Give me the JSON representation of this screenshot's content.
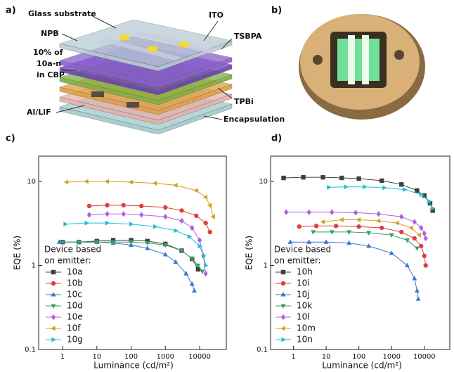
{
  "panel_labels": [
    "a)",
    "b)",
    "c)",
    "d)"
  ],
  "diagram": {
    "labels": [
      "Glass substrate",
      "ITO",
      "NPB",
      "TSBPA",
      "10% of",
      "10a-n",
      "in CBP",
      "Al/LiF",
      "TPBi",
      "Encapsulation"
    ]
  },
  "chart_data": [
    {
      "type": "line",
      "x_label": "Luminance (cd/m²)",
      "y_label": "EQE (%)",
      "log_x": true,
      "log_y": true,
      "xlim": [
        0.2,
        60000
      ],
      "ylim": [
        0.1,
        20
      ],
      "xticks": [
        1,
        10,
        100,
        1000,
        10000
      ],
      "yticks": [
        0.1,
        1,
        10
      ],
      "legend": "lower left",
      "legend_title": [
        "Device based",
        "on emitter:"
      ],
      "series": [
        {
          "name": "10a",
          "color": "#404040",
          "marker": "square",
          "x": [
            1,
            3,
            10,
            30,
            100,
            300,
            1000,
            3000,
            6000,
            9000
          ],
          "values": [
            1.9,
            1.9,
            1.95,
            2.0,
            2.0,
            1.95,
            1.8,
            1.5,
            1.2,
            0.9
          ]
        },
        {
          "name": "10b",
          "color": "#e0403c",
          "marker": "circle",
          "x": [
            6,
            20,
            60,
            200,
            1000,
            3000,
            8000,
            15000,
            20000
          ],
          "values": [
            5.1,
            5.2,
            5.2,
            5.1,
            4.9,
            4.5,
            3.9,
            3.2,
            2.5
          ]
        },
        {
          "name": "10c",
          "color": "#3a78d0",
          "marker": "up",
          "x": [
            0.8,
            3,
            10,
            30,
            100,
            300,
            1000,
            2000,
            4000,
            6000,
            7000
          ],
          "values": [
            1.9,
            1.9,
            1.9,
            1.85,
            1.75,
            1.6,
            1.35,
            1.1,
            0.8,
            0.6,
            0.5
          ]
        },
        {
          "name": "10d",
          "color": "#3aa066",
          "marker": "down",
          "x": [
            1,
            3,
            10,
            30,
            100,
            300,
            1000,
            3000,
            6000,
            9000,
            12000
          ],
          "values": [
            1.9,
            1.9,
            1.9,
            1.9,
            1.9,
            1.85,
            1.75,
            1.5,
            1.2,
            1.0,
            0.85
          ]
        },
        {
          "name": "10e",
          "color": "#b060e0",
          "marker": "diamond",
          "x": [
            6,
            20,
            60,
            200,
            1000,
            3000,
            6000,
            10000,
            13000,
            15000
          ],
          "values": [
            4.0,
            4.1,
            4.1,
            4.0,
            3.8,
            3.4,
            2.8,
            2.0,
            1.3,
            0.8
          ]
        },
        {
          "name": "10f",
          "color": "#d4a020",
          "marker": "left",
          "x": [
            1.3,
            5,
            20,
            100,
            500,
            2000,
            8000,
            15000,
            20000,
            25000
          ],
          "values": [
            9.8,
            10,
            10,
            9.8,
            9.5,
            9,
            7.8,
            6.5,
            5.2,
            3.8
          ]
        },
        {
          "name": "10g",
          "color": "#20c0d0",
          "marker": "right",
          "x": [
            1.2,
            5,
            20,
            100,
            500,
            2000,
            5000,
            10000,
            13000,
            15000
          ],
          "values": [
            3.1,
            3.2,
            3.2,
            3.1,
            2.9,
            2.6,
            2.2,
            1.7,
            1.3,
            1.0
          ]
        }
      ]
    },
    {
      "type": "line",
      "x_label": "Luminance (cd/m²)",
      "y_label": "EQE (%)",
      "log_x": true,
      "log_y": true,
      "xlim": [
        0.2,
        60000
      ],
      "ylim": [
        0.1,
        20
      ],
      "xticks": [
        1,
        10,
        100,
        1000,
        10000
      ],
      "yticks": [
        0.1,
        1,
        10
      ],
      "legend": "lower left",
      "legend_title": [
        "Device based",
        "on emitter:"
      ],
      "series": [
        {
          "name": "10h",
          "color": "#404040",
          "marker": "square",
          "x": [
            0.5,
            2,
            8,
            30,
            100,
            500,
            2000,
            6000,
            10000,
            15000,
            18000
          ],
          "values": [
            11,
            11.2,
            11.2,
            11,
            10.8,
            10.2,
            9.2,
            7.8,
            6.8,
            5.5,
            4.5
          ]
        },
        {
          "name": "10i",
          "color": "#e0403c",
          "marker": "circle",
          "x": [
            1.5,
            5,
            20,
            100,
            500,
            2000,
            5000,
            8000,
            10000,
            11000
          ],
          "values": [
            2.9,
            2.95,
            2.95,
            2.9,
            2.8,
            2.5,
            2.1,
            1.7,
            1.3,
            1.0
          ]
        },
        {
          "name": "10j",
          "color": "#3a78d0",
          "marker": "up",
          "x": [
            0.8,
            3,
            10,
            50,
            200,
            1000,
            3000,
            5000,
            6000,
            6500
          ],
          "values": [
            1.9,
            1.9,
            1.9,
            1.85,
            1.7,
            1.4,
            1.0,
            0.7,
            0.5,
            0.4
          ]
        },
        {
          "name": "10k",
          "color": "#3aa066",
          "marker": "down",
          "x": [
            4,
            15,
            50,
            200,
            1000,
            3000,
            6000
          ],
          "values": [
            2.5,
            2.5,
            2.5,
            2.45,
            2.3,
            2.0,
            1.6
          ]
        },
        {
          "name": "10l",
          "color": "#b060e0",
          "marker": "diamond",
          "x": [
            0.6,
            3,
            15,
            80,
            400,
            2000,
            5000,
            8000,
            10000,
            11000
          ],
          "values": [
            4.3,
            4.3,
            4.3,
            4.25,
            4.1,
            3.8,
            3.3,
            2.8,
            2.4,
            2.1
          ]
        },
        {
          "name": "10m",
          "color": "#d4a020",
          "marker": "left",
          "x": [
            8,
            30,
            100,
            400,
            1500,
            4000,
            7000
          ],
          "values": [
            3.3,
            3.5,
            3.5,
            3.4,
            3.2,
            2.8,
            2.3
          ]
        },
        {
          "name": "10n",
          "color": "#20c0d0",
          "marker": "right",
          "x": [
            12,
            40,
            150,
            600,
            2500,
            8000,
            14000,
            18000
          ],
          "values": [
            8.5,
            8.6,
            8.6,
            8.4,
            8.0,
            7.0,
            5.8,
            4.8
          ]
        }
      ]
    }
  ]
}
